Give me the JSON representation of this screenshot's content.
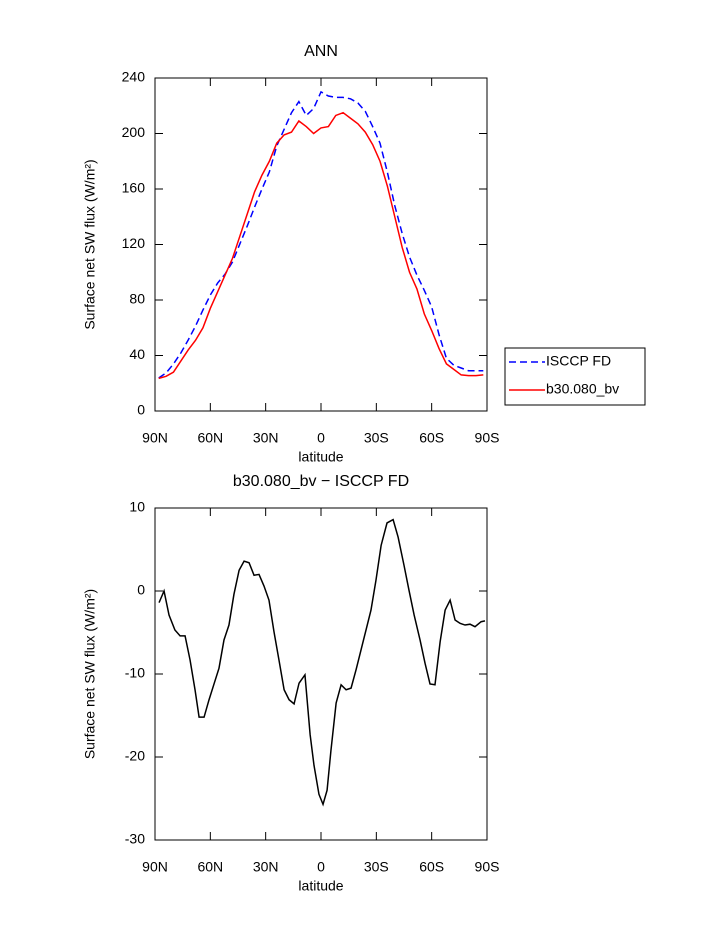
{
  "chart_data": [
    {
      "type": "line",
      "title": "ANN",
      "x_label": "latitude",
      "y_label": "Surface net SW flux (W/m²)",
      "x": [
        88,
        84,
        80,
        76,
        72,
        68,
        64,
        60,
        56,
        52,
        48,
        44,
        40,
        36,
        32,
        28,
        24,
        20,
        16,
        12,
        8,
        4,
        0,
        -4,
        -8,
        -12,
        -16,
        -20,
        -24,
        -28,
        -32,
        -36,
        -40,
        -44,
        -48,
        -52,
        -56,
        -60,
        -64,
        -68,
        -72,
        -76,
        -80,
        -84,
        -88
      ],
      "series": [
        {
          "name": "ISCCP FD",
          "color": "#0000ff",
          "style": "dashed",
          "values": [
            23.8,
            27.4,
            33.9,
            41.8,
            51.2,
            61.3,
            72.8,
            83.6,
            92.3,
            98.7,
            107.4,
            120.4,
            133.3,
            147,
            160,
            172.3,
            191,
            203,
            215,
            223,
            213,
            218,
            230,
            227,
            226,
            226,
            225,
            222,
            216,
            205,
            193,
            172,
            148,
            128,
            111,
            98,
            87,
            75,
            55,
            38,
            33,
            31,
            29,
            29,
            29
          ]
        },
        {
          "name": "b30.080_bv",
          "color": "#ff0000",
          "style": "solid",
          "values": [
            23.5,
            25,
            28,
            36,
            44,
            51,
            60,
            74,
            86,
            98,
            110,
            126,
            142,
            158,
            170,
            180,
            193,
            199,
            201,
            209,
            205,
            200,
            204,
            205,
            213,
            215,
            211,
            207,
            201,
            192,
            180,
            162,
            140,
            118,
            100,
            88,
            70,
            58,
            45,
            34,
            30,
            26,
            25.5,
            25.5,
            26
          ]
        }
      ],
      "xlim": [
        90,
        -90
      ],
      "xticks": [
        {
          "value": 90,
          "label": "90N"
        },
        {
          "value": 60,
          "label": "60N"
        },
        {
          "value": 30,
          "label": "30N"
        },
        0,
        {
          "value": -30,
          "label": "30S"
        },
        {
          "value": -60,
          "label": "60S"
        },
        {
          "value": -90,
          "label": "90S"
        }
      ],
      "ylim": [
        0,
        240
      ],
      "yticks": [
        0,
        40,
        80,
        120,
        160,
        200,
        240
      ],
      "legend": "right"
    },
    {
      "type": "line",
      "title": "b30.080_bv − ISCCP FD",
      "x_label": "latitude",
      "y_label": "Surface net SW flux (W/m²)",
      "x": [
        87.8,
        85.1,
        82.4,
        79.2,
        76.4,
        73.7,
        71.0,
        68.3,
        66.1,
        63.4,
        60.7,
        58.0,
        55.3,
        52.6,
        49.9,
        47.2,
        44.4,
        41.7,
        39.0,
        36.3,
        33.6,
        30.9,
        28.2,
        25.5,
        22.8,
        20.0,
        17.3,
        14.6,
        11.9,
        8.7,
        5.9,
        3.8,
        1.1,
        -1.1,
        -3.3,
        -5.4,
        -8.2,
        -10.9,
        -13.6,
        -16.3,
        -19.0,
        -21.7,
        -24.4,
        -27.1,
        -29.8,
        -32.6,
        -35.8,
        -39.1,
        -41.8,
        -45.0,
        -47.7,
        -50.5,
        -53.7,
        -56.4,
        -59.1,
        -61.8,
        -64.6,
        -67.3,
        -70.0,
        -72.7,
        -75.4,
        -78.1,
        -80.8,
        -83.5,
        -86.8,
        -88.9
      ],
      "series": [
        {
          "color": "#000000",
          "style": "solid",
          "values": [
            -1.4,
            0.0,
            -2.9,
            -4.7,
            -5.4,
            -5.4,
            -8.3,
            -11.9,
            -15.2,
            -15.2,
            -13.1,
            -11.2,
            -9.3,
            -5.9,
            -4.1,
            -0.4,
            2.5,
            3.6,
            3.4,
            1.9,
            2.0,
            0.6,
            -1.1,
            -4.9,
            -8.3,
            -11.9,
            -13.1,
            -13.6,
            -11.1,
            -10.1,
            -17.3,
            -21.0,
            -24.5,
            -25.7,
            -24.0,
            -19.2,
            -13.5,
            -11.3,
            -11.9,
            -11.7,
            -9.5,
            -7.1,
            -4.7,
            -2.3,
            1.3,
            5.5,
            8.2,
            8.6,
            6.5,
            3.1,
            0.1,
            -2.9,
            -5.9,
            -8.7,
            -11.2,
            -11.3,
            -6.1,
            -2.3,
            -1.1,
            -3.5,
            -3.9,
            -4.1,
            -4.0,
            -4.3,
            -3.7,
            -3.6
          ]
        }
      ],
      "xlim": [
        90,
        -90
      ],
      "xticks": [
        {
          "value": 90,
          "label": "90N"
        },
        {
          "value": 60,
          "label": "60N"
        },
        {
          "value": 30,
          "label": "30N"
        },
        0,
        {
          "value": -30,
          "label": "30S"
        },
        {
          "value": -60,
          "label": "60S"
        },
        {
          "value": -90,
          "label": "90S"
        }
      ],
      "ylim": [
        -30,
        10
      ],
      "yticks": [
        -30,
        -20,
        -10,
        0,
        10
      ]
    }
  ]
}
